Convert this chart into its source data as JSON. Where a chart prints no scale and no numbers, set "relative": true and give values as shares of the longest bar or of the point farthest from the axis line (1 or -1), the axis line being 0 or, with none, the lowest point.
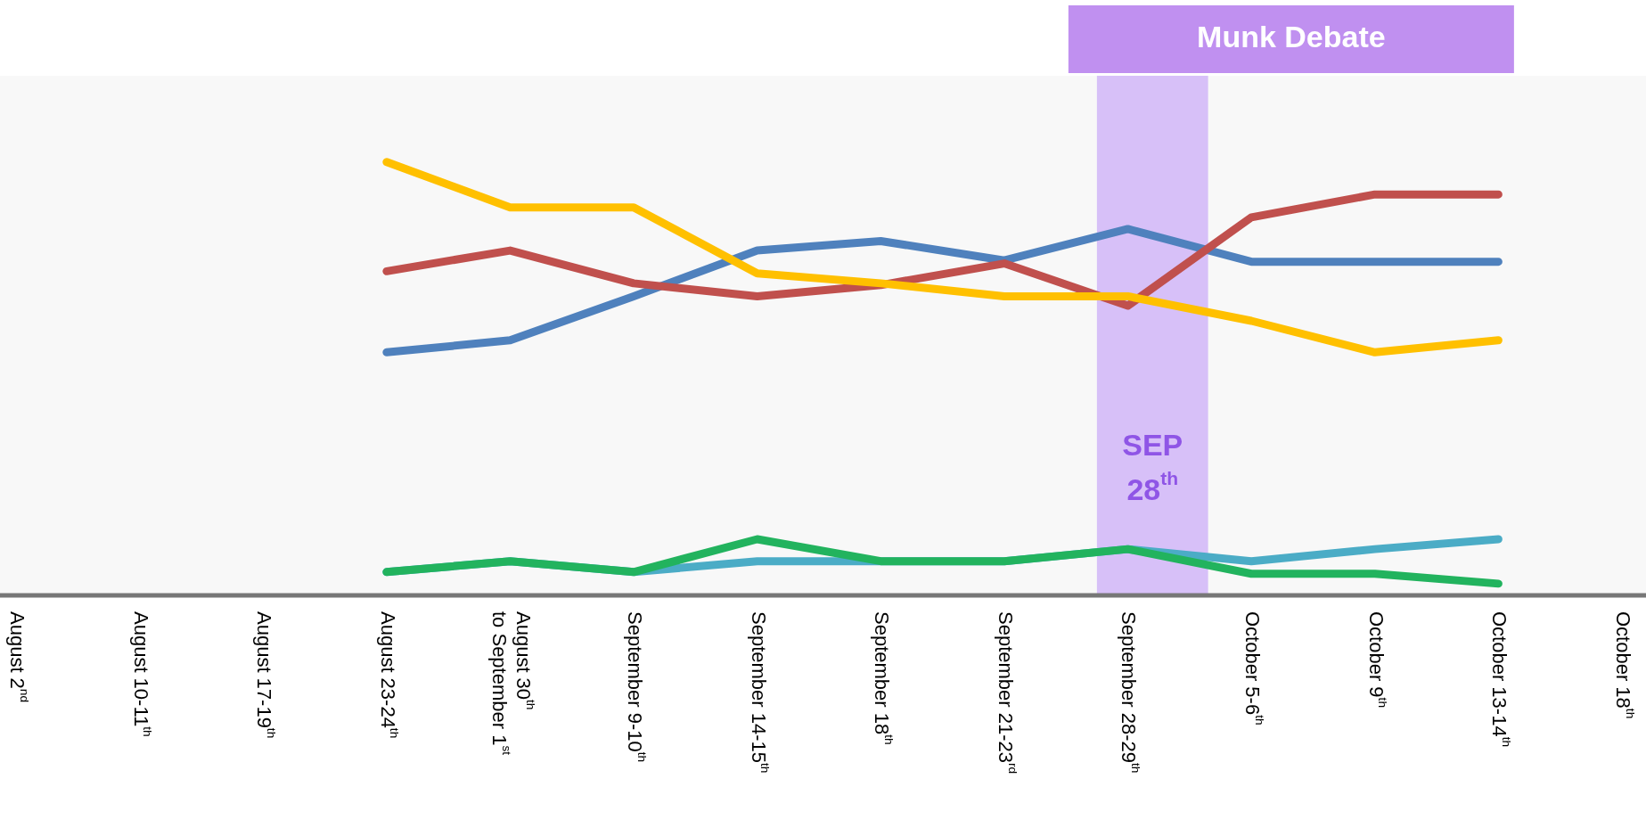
{
  "chart_data": {
    "type": "line",
    "relative": true,
    "grid": false,
    "legend": false,
    "marker": "none",
    "line_style": "solid",
    "categories": [
      "August 2$^{nd}$",
      "August 10-11$^{th}$",
      "August 17-19$^{th}$",
      "August 23-24$^{th}$",
      "August 30$^{th}$\nto September 1$^{st}$",
      "September 9-10$^{th}$",
      "September 14-15$^{th}$",
      "September 18$^{th}$",
      "September 21-23$^{rd}$",
      "September 28-29$^{th}$",
      "October 5-6$^{th}$",
      "October 9$^{th}$",
      "October 13-14$^{th}$",
      "October 18$^{th}$"
    ],
    "series": [
      {
        "color": "#ffc000",
        "values": [
          null,
          null,
          null,
          1,
          0.895,
          0.895,
          0.742,
          0.719,
          0.689,
          0.689,
          0.632,
          0.559,
          0.587,
          null
        ]
      },
      {
        "color": "#c0504d",
        "values": [
          null,
          null,
          null,
          0.747,
          0.795,
          0.719,
          0.689,
          0.715,
          0.765,
          0.667,
          0.872,
          0.925,
          0.925,
          null
        ]
      },
      {
        "color": "#4f81bd",
        "values": [
          null,
          null,
          null,
          0.559,
          0.587,
          0.689,
          0.795,
          0.817,
          0.772,
          0.845,
          0.769,
          0.769,
          0.769,
          null
        ]
      },
      {
        "color": "#22b35e",
        "values": [
          null,
          null,
          null,
          0.05,
          0.075,
          0.05,
          0.126,
          0.075,
          0.075,
          0.103,
          0.046,
          0.046,
          0.023,
          null
        ]
      },
      {
        "color": "#4bacc6",
        "values": [
          null,
          null,
          null,
          0.05,
          0.075,
          0.05,
          0.075,
          0.075,
          0.075,
          0.103,
          0.075,
          0.103,
          0.126,
          null
        ]
      }
    ],
    "bands": [
      {
        "axis": "x",
        "from": "September 28-29$^{th}$",
        "to": "September 28-29$^{th}$",
        "label": "SEP\n28$^{th}$",
        "color": "#d7c0f8"
      }
    ],
    "annotations": [
      "Munk Debate"
    ]
  }
}
